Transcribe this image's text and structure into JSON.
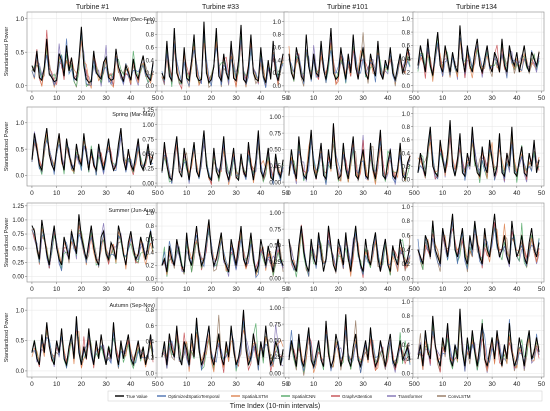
{
  "figure": {
    "xlabel": "Time Index (10-min intervals)",
    "ylabel": "Standardized Power",
    "columns": [
      "Turbine #1",
      "Turbine #33",
      "Turbine #101",
      "Turbine #134"
    ],
    "seasons": [
      "Winter (Dec-Feb)",
      "Spring (Mar-May)",
      "Summer (Jun-Aug)",
      "Autumn (Sep-Nov)"
    ]
  },
  "legend": [
    {
      "name": "True Value",
      "color": "#000000"
    },
    {
      "name": "OptimizedSpatioTemporal",
      "color": "#4c72b0"
    },
    {
      "name": "SpatialLSTM",
      "color": "#dd8452"
    },
    {
      "name": "SpatialCNN",
      "color": "#55a868"
    },
    {
      "name": "GraphAttention",
      "color": "#c44e52"
    },
    {
      "name": "Transformer",
      "color": "#8172b3"
    },
    {
      "name": "ConvLSTM",
      "color": "#937860"
    }
  ],
  "chart_data": {
    "type": "line",
    "layout": "4x4 grid (rows = seasons, columns = turbines)",
    "x": [
      0,
      1,
      2,
      3,
      4,
      5,
      6,
      7,
      8,
      9,
      10,
      11,
      12,
      13,
      14,
      15,
      16,
      17,
      18,
      19,
      20,
      21,
      22,
      23,
      24,
      25,
      26,
      27,
      28,
      29,
      30,
      31,
      32,
      33,
      34,
      35,
      36,
      37,
      38,
      39,
      40,
      41,
      42,
      43,
      44,
      45,
      46,
      47,
      48,
      49
    ],
    "xlim": [
      -2,
      51
    ],
    "xticks": [
      0,
      10,
      20,
      30,
      40,
      50
    ],
    "grid": true,
    "legend_position": "bottom-center",
    "panels": [
      {
        "row": 0,
        "col": 0,
        "ylim": [
          -0.08,
          1.1
        ],
        "yticks": [
          0.0,
          0.5,
          1.0
        ],
        "true_values": [
          0.3,
          0.2,
          0.52,
          0.12,
          0.08,
          0.28,
          0.7,
          0.18,
          0.12,
          0.06,
          0.08,
          0.48,
          0.38,
          0.14,
          0.6,
          0.22,
          0.42,
          0.12,
          0.08,
          0.4,
          0.88,
          0.3,
          0.1,
          0.05,
          0.06,
          0.52,
          0.2,
          0.14,
          0.1,
          0.35,
          0.42,
          0.12,
          0.08,
          0.1,
          0.55,
          0.28,
          0.18,
          0.06,
          0.3,
          0.2,
          0.08,
          0.4,
          0.18,
          0.1,
          0.3,
          0.45,
          0.2,
          0.12,
          0.08,
          0.35
        ]
      },
      {
        "row": 0,
        "col": 1,
        "ylim": [
          -0.08,
          1.15
        ],
        "yticks": [
          0.0,
          0.2,
          0.4,
          0.6,
          0.8,
          1.0
        ],
        "true_values": [
          0.2,
          0.1,
          0.7,
          0.15,
          0.08,
          0.9,
          0.2,
          0.1,
          0.05,
          0.6,
          0.12,
          0.08,
          0.4,
          0.8,
          0.15,
          0.08,
          0.1,
          1.0,
          0.2,
          0.05,
          0.1,
          0.3,
          0.9,
          0.15,
          0.08,
          0.5,
          0.2,
          0.1,
          0.7,
          0.12,
          0.08,
          0.4,
          0.95,
          0.1,
          0.05,
          0.3,
          0.8,
          0.2,
          0.1,
          0.08,
          0.6,
          0.15,
          0.05,
          0.4,
          0.1,
          0.7,
          0.2,
          0.08,
          0.3,
          0.5
        ]
      },
      {
        "row": 0,
        "col": 2,
        "ylim": [
          -0.08,
          1.15
        ],
        "yticks": [
          0.0,
          0.2,
          0.4,
          0.6,
          0.8,
          1.0
        ],
        "true_values": [
          0.5,
          0.2,
          0.1,
          0.6,
          0.4,
          0.15,
          0.08,
          0.8,
          0.3,
          0.1,
          0.5,
          0.2,
          0.15,
          0.7,
          0.25,
          0.1,
          0.4,
          0.9,
          0.2,
          0.1,
          0.15,
          0.6,
          0.3,
          0.1,
          0.5,
          0.2,
          0.8,
          0.3,
          0.1,
          0.4,
          0.6,
          0.2,
          0.1,
          0.5,
          0.3,
          0.15,
          0.7,
          0.2,
          0.1,
          0.4,
          0.25,
          0.6,
          0.2,
          0.1,
          0.3,
          0.5,
          0.2,
          0.35,
          0.6,
          0.4
        ]
      },
      {
        "row": 0,
        "col": 3,
        "ylim": [
          -0.08,
          1.1
        ],
        "yticks": [
          0.0,
          0.2,
          0.4,
          0.6,
          0.8,
          1.0
        ],
        "true_values": [
          0.3,
          0.6,
          0.4,
          0.2,
          0.7,
          0.3,
          0.15,
          0.5,
          0.8,
          0.3,
          0.2,
          0.6,
          0.4,
          0.2,
          0.5,
          0.3,
          0.2,
          0.9,
          0.4,
          0.2,
          0.6,
          0.3,
          0.2,
          0.5,
          0.7,
          0.3,
          0.2,
          0.4,
          0.6,
          0.3,
          0.2,
          0.5,
          0.4,
          0.2,
          0.7,
          0.3,
          0.2,
          0.6,
          0.4,
          0.3,
          0.5,
          0.2,
          0.4,
          0.6,
          0.3,
          0.2,
          0.5,
          0.4,
          0.3,
          0.5
        ]
      },
      {
        "row": 1,
        "col": 0,
        "ylim": [
          -0.2,
          1.3
        ],
        "yticks": [
          0.0,
          0.5,
          1.0
        ],
        "true_values": [
          0.3,
          0.8,
          0.5,
          0.2,
          0.1,
          0.6,
          0.9,
          0.4,
          0.2,
          0.1,
          0.5,
          0.8,
          0.3,
          0.1,
          0.7,
          0.4,
          0.2,
          0.1,
          0.6,
          0.3,
          0.2,
          0.8,
          0.4,
          0.1,
          0.5,
          0.2,
          0.1,
          0.6,
          0.3,
          0.1,
          0.4,
          0.7,
          0.3,
          0.1,
          0.2,
          0.6,
          0.9,
          0.3,
          0.1,
          0.5,
          0.2,
          0.1,
          0.4,
          0.7,
          0.2,
          0.1,
          0.3,
          0.6,
          0.2,
          0.4
        ]
      },
      {
        "row": 1,
        "col": 1,
        "ylim": [
          -0.05,
          1.3
        ],
        "yticks": [
          0.0,
          0.25,
          0.5,
          0.75,
          1.0,
          1.25
        ],
        "true_values": [
          0.2,
          0.7,
          0.3,
          0.1,
          0.05,
          0.5,
          0.8,
          0.2,
          0.1,
          0.6,
          0.3,
          0.05,
          0.4,
          0.7,
          0.2,
          0.1,
          0.5,
          0.9,
          0.3,
          0.1,
          0.05,
          0.6,
          0.2,
          0.1,
          0.4,
          0.8,
          0.2,
          0.05,
          0.3,
          0.6,
          0.1,
          0.05,
          0.5,
          0.2,
          0.1,
          0.7,
          0.3,
          0.05,
          0.4,
          0.9,
          0.2,
          0.1,
          0.3,
          0.6,
          0.1,
          0.05,
          0.5,
          0.2,
          0.1,
          0.4
        ]
      },
      {
        "row": 1,
        "col": 2,
        "ylim": [
          -0.06,
          1.15
        ],
        "yticks": [
          0.0,
          0.25,
          0.5,
          0.75,
          1.0
        ],
        "true_values": [
          0.1,
          0.5,
          0.2,
          0.05,
          0.7,
          0.3,
          0.1,
          0.05,
          0.4,
          0.8,
          0.2,
          0.05,
          0.3,
          0.6,
          0.1,
          0.05,
          0.5,
          0.2,
          0.9,
          0.3,
          0.05,
          0.1,
          0.6,
          0.2,
          0.05,
          0.4,
          0.7,
          0.1,
          0.05,
          0.3,
          0.5,
          0.1,
          0.05,
          0.6,
          0.2,
          0.05,
          0.4,
          0.8,
          0.1,
          0.05,
          0.3,
          0.5,
          0.1,
          0.05,
          0.2,
          0.6,
          0.1,
          0.05,
          0.3,
          0.4
        ]
      },
      {
        "row": 1,
        "col": 3,
        "ylim": [
          -0.1,
          1.1
        ],
        "yticks": [
          0.0,
          0.2,
          0.4,
          0.6,
          0.8,
          1.0
        ],
        "true_values": [
          0.1,
          0.4,
          0.2,
          0.05,
          0.5,
          0.8,
          0.2,
          0.1,
          0.05,
          0.6,
          0.3,
          0.1,
          0.4,
          0.9,
          0.2,
          0.05,
          0.3,
          0.7,
          0.1,
          0.05,
          0.4,
          0.2,
          0.8,
          0.3,
          0.1,
          0.05,
          0.5,
          0.2,
          0.1,
          0.6,
          0.3,
          0.05,
          0.2,
          0.7,
          0.1,
          0.05,
          0.4,
          0.2,
          0.8,
          0.1,
          0.05,
          0.3,
          0.5,
          0.1,
          0.05,
          0.4,
          0.2,
          0.6,
          0.1,
          0.3
        ]
      },
      {
        "row": 2,
        "col": 0,
        "ylim": [
          -0.1,
          1.3
        ],
        "yticks": [
          0.0,
          0.25,
          0.5,
          0.75,
          1.0,
          1.25
        ],
        "true_values": [
          0.9,
          0.8,
          0.5,
          0.3,
          1.0,
          0.7,
          0.4,
          0.2,
          0.6,
          0.9,
          0.5,
          0.3,
          0.2,
          0.7,
          0.5,
          0.3,
          0.8,
          0.6,
          0.4,
          1.1,
          0.7,
          0.5,
          0.3,
          0.6,
          0.9,
          0.5,
          0.3,
          0.2,
          0.7,
          0.8,
          0.4,
          0.3,
          0.6,
          0.5,
          0.3,
          0.9,
          0.7,
          0.4,
          0.2,
          0.6,
          0.8,
          0.5,
          0.3,
          0.4,
          0.7,
          0.5,
          0.3,
          0.6,
          0.8,
          0.5
        ]
      },
      {
        "row": 2,
        "col": 1,
        "ylim": [
          -0.05,
          1.15
        ],
        "yticks": [
          0.0,
          0.2,
          0.4,
          0.6,
          0.8,
          1.0
        ],
        "true_values": [
          0.2,
          0.3,
          0.1,
          0.5,
          0.3,
          0.2,
          0.6,
          0.4,
          0.2,
          0.1,
          0.7,
          0.3,
          0.2,
          0.5,
          0.8,
          0.4,
          0.2,
          0.3,
          0.6,
          0.9,
          0.4,
          0.2,
          0.3,
          0.5,
          0.7,
          0.3,
          0.2,
          0.1,
          0.6,
          0.4,
          0.2,
          0.5,
          0.8,
          0.3,
          0.2,
          0.4,
          0.7,
          0.3,
          0.1,
          0.2,
          0.6,
          0.4,
          0.2,
          0.5,
          0.3,
          0.1,
          0.4,
          0.6,
          0.3,
          0.2
        ]
      },
      {
        "row": 2,
        "col": 2,
        "ylim": [
          -0.06,
          1.15
        ],
        "yticks": [
          0.0,
          0.25,
          0.5,
          0.75,
          1.0
        ],
        "true_values": [
          0.6,
          0.3,
          0.2,
          0.1,
          0.5,
          0.8,
          0.4,
          0.2,
          0.1,
          0.6,
          0.3,
          0.2,
          0.7,
          0.4,
          0.1,
          0.3,
          0.8,
          0.5,
          0.2,
          0.1,
          0.6,
          0.4,
          0.2,
          0.7,
          0.3,
          0.1,
          0.5,
          0.8,
          0.4,
          0.2,
          0.1,
          0.6,
          0.3,
          0.2,
          0.5,
          0.7,
          0.3,
          0.1,
          0.4,
          0.6,
          0.2,
          0.1,
          0.5,
          0.3,
          0.2,
          0.6,
          0.4,
          0.2,
          0.3,
          0.5
        ]
      },
      {
        "row": 2,
        "col": 3,
        "ylim": [
          -0.05,
          1.05
        ],
        "yticks": [
          0.0,
          0.2,
          0.4,
          0.6,
          0.8,
          1.0
        ],
        "true_values": [
          0.4,
          0.3,
          0.2,
          0.6,
          0.5,
          0.3,
          0.8,
          0.4,
          0.3,
          0.2,
          0.7,
          0.5,
          0.3,
          0.6,
          0.9,
          0.4,
          0.3,
          0.5,
          0.7,
          0.3,
          0.2,
          0.6,
          0.4,
          0.8,
          0.5,
          0.3,
          0.2,
          0.7,
          0.4,
          0.3,
          0.6,
          0.9,
          0.5,
          0.3,
          0.4,
          0.6,
          0.3,
          0.2,
          0.8,
          0.5,
          0.3,
          0.4,
          0.6,
          0.3,
          0.2,
          0.5,
          0.7,
          0.4,
          0.3,
          0.5
        ]
      },
      {
        "row": 3,
        "col": 0,
        "ylim": [
          -0.1,
          1.2
        ],
        "yticks": [
          0.0,
          0.5,
          1.0
        ],
        "true_values": [
          0.3,
          0.5,
          0.2,
          0.1,
          0.6,
          0.3,
          0.8,
          0.4,
          0.2,
          0.1,
          0.5,
          0.3,
          0.7,
          0.2,
          0.1,
          0.4,
          0.6,
          0.2,
          0.9,
          0.3,
          0.1,
          0.4,
          0.2,
          0.7,
          0.3,
          0.1,
          0.5,
          0.2,
          0.6,
          0.3,
          0.1,
          0.4,
          0.2,
          0.8,
          0.3,
          0.1,
          0.5,
          0.2,
          0.4,
          0.6,
          0.2,
          0.1,
          0.3,
          0.5,
          0.2,
          0.4,
          0.1,
          0.3,
          0.6,
          0.2
        ]
      },
      {
        "row": 3,
        "col": 1,
        "ylim": [
          -0.05,
          0.95
        ],
        "yticks": [
          0.0,
          0.2,
          0.4,
          0.6,
          0.8
        ],
        "true_values": [
          0.2,
          0.4,
          0.1,
          0.5,
          0.3,
          0.2,
          0.6,
          0.2,
          0.1,
          0.4,
          0.3,
          0.1,
          0.5,
          0.2,
          0.7,
          0.3,
          0.1,
          0.2,
          0.4,
          0.6,
          0.2,
          0.1,
          0.3,
          0.5,
          0.2,
          0.1,
          0.4,
          0.2,
          0.6,
          0.3,
          0.1,
          0.2,
          0.4,
          0.8,
          0.3,
          0.1,
          0.2,
          0.5,
          0.3,
          0.1,
          0.4,
          0.2,
          0.6,
          0.3,
          0.1,
          0.2,
          0.4,
          0.3,
          0.1,
          0.3
        ]
      },
      {
        "row": 3,
        "col": 2,
        "ylim": [
          -0.06,
          1.15
        ],
        "yticks": [
          0.0,
          0.25,
          0.5,
          0.75,
          1.0
        ],
        "true_values": [
          0.2,
          0.5,
          0.3,
          0.1,
          0.6,
          0.2,
          0.1,
          0.4,
          0.7,
          0.2,
          0.1,
          0.3,
          0.5,
          0.2,
          0.1,
          0.8,
          0.3,
          0.1,
          0.2,
          0.6,
          0.4,
          0.1,
          0.3,
          0.9,
          0.2,
          0.1,
          0.4,
          0.6,
          0.2,
          0.1,
          0.3,
          0.5,
          0.2,
          0.7,
          0.3,
          0.1,
          0.2,
          0.5,
          0.3,
          0.1,
          0.4,
          0.6,
          0.2,
          0.1,
          0.3,
          0.5,
          0.2,
          0.3,
          0.4,
          0.2
        ]
      },
      {
        "row": 3,
        "col": 3,
        "ylim": [
          -0.05,
          1.05
        ],
        "yticks": [
          0.0,
          0.2,
          0.4,
          0.6,
          0.8,
          1.0
        ],
        "true_values": [
          0.2,
          0.4,
          0.1,
          0.6,
          0.3,
          0.2,
          0.8,
          0.4,
          0.2,
          0.1,
          0.5,
          0.3,
          0.7,
          0.2,
          0.1,
          0.4,
          0.2,
          0.9,
          0.3,
          0.1,
          0.5,
          0.2,
          0.6,
          0.3,
          0.1,
          0.4,
          0.7,
          0.2,
          0.1,
          0.3,
          0.5,
          0.2,
          0.6,
          0.3,
          0.1,
          0.4,
          0.2,
          0.7,
          0.3,
          0.1,
          0.2,
          0.5,
          0.3,
          0.1,
          0.4,
          0.6,
          0.2,
          0.3,
          0.5,
          0.3
        ]
      }
    ]
  }
}
